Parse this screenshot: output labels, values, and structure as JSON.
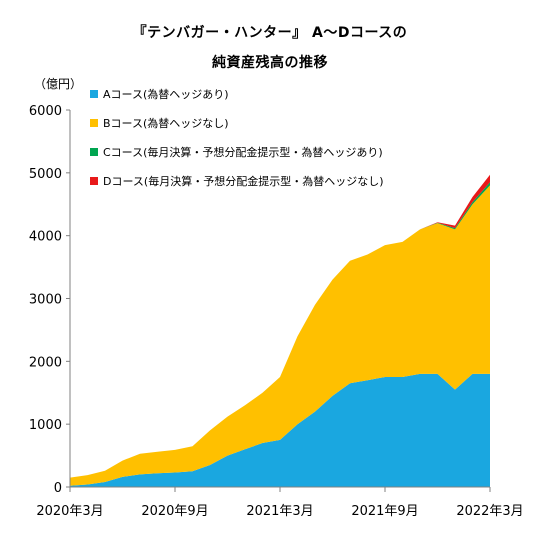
{
  "chart_data": {
    "type": "area",
    "stacked": true,
    "title": "『テンバガー・ハンター』 A～Dコースの",
    "subtitle": "純資産残高の推移",
    "unit_label": "（億円）",
    "xlabel": "",
    "ylabel": "",
    "ylim": [
      0,
      6000
    ],
    "yticks": [
      0,
      1000,
      2000,
      3000,
      4000,
      5000,
      6000
    ],
    "xticks": [
      "2020年3月",
      "2020年9月",
      "2021年3月",
      "2021年9月",
      "2022年3月"
    ],
    "x": [
      "2020-03",
      "2020-04",
      "2020-05",
      "2020-06",
      "2020-07",
      "2020-08",
      "2020-09",
      "2020-10",
      "2020-11",
      "2020-12",
      "2021-01",
      "2021-02",
      "2021-03",
      "2021-04",
      "2021-05",
      "2021-06",
      "2021-07",
      "2021-08",
      "2021-09",
      "2021-10",
      "2021-11",
      "2021-12",
      "2022-01",
      "2022-02",
      "2022-03"
    ],
    "grid": false,
    "legend_position": "top-left",
    "series": [
      {
        "name": "Aコース(為替ヘッジあり)",
        "color": "#1aa7e0",
        "values": [
          20,
          40,
          80,
          160,
          200,
          220,
          230,
          250,
          350,
          500,
          600,
          700,
          750,
          1000,
          1200,
          1450,
          1650,
          1700,
          1750,
          1750,
          1800,
          1800,
          1550,
          1800,
          1800
        ]
      },
      {
        "name": "Bコース(為替ヘッジなし)",
        "color": "#ffc000",
        "values": [
          130,
          150,
          180,
          260,
          330,
          340,
          360,
          400,
          550,
          620,
          700,
          800,
          1000,
          1400,
          1700,
          1850,
          1950,
          2000,
          2100,
          2150,
          2300,
          2400,
          2550,
          2700,
          3000
        ]
      },
      {
        "name": "Cコース(毎月決算・予想分配金提示型・為替ヘッジあり)",
        "color": "#00a550",
        "values": [
          0,
          0,
          0,
          0,
          0,
          0,
          0,
          0,
          0,
          0,
          0,
          0,
          0,
          0,
          0,
          0,
          0,
          0,
          0,
          0,
          0,
          5,
          20,
          35,
          50
        ]
      },
      {
        "name": "Dコース(毎月決算・予想分配金提示型・為替ヘッジなし)",
        "color": "#e8191a",
        "values": [
          0,
          0,
          0,
          0,
          0,
          0,
          0,
          0,
          0,
          0,
          0,
          0,
          0,
          0,
          0,
          0,
          0,
          0,
          0,
          0,
          0,
          10,
          40,
          80,
          120
        ]
      }
    ]
  }
}
